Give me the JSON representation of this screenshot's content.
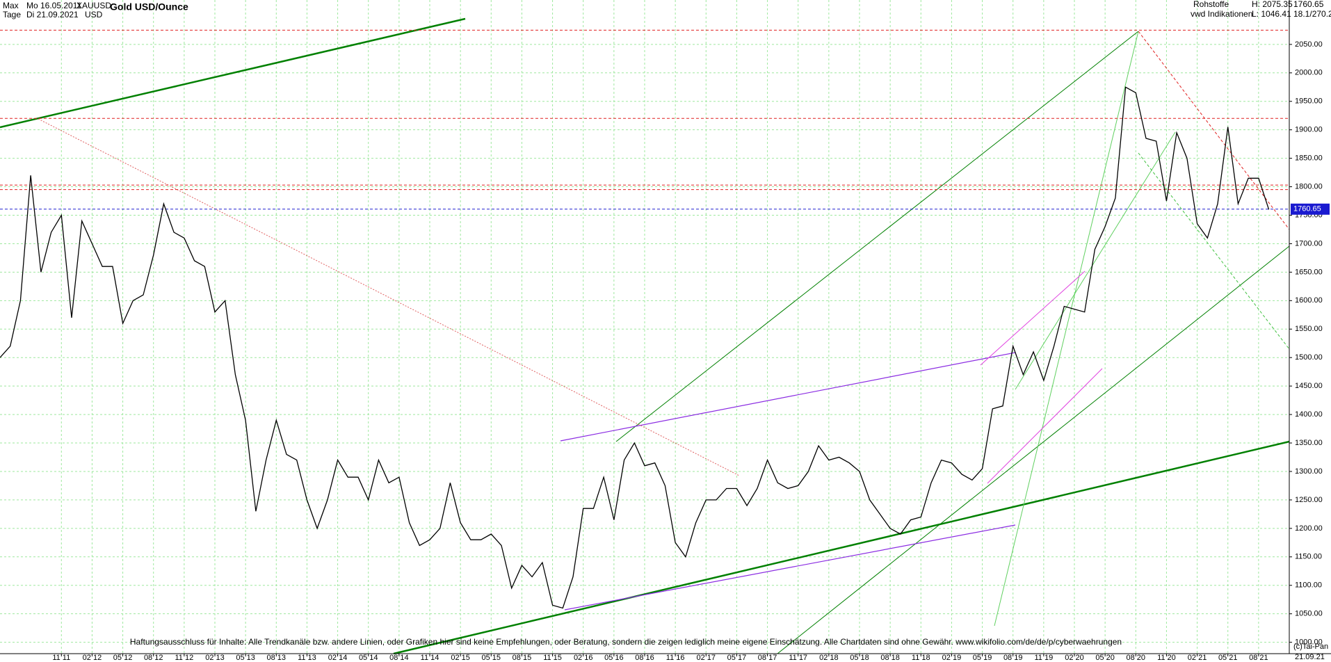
{
  "chart_data": {
    "type": "line",
    "header": {
      "range": "Max",
      "from": "Mo 16.05.2011",
      "symbol": "XAUUSD",
      "period": "Tage",
      "to": "Di 21.09.2021",
      "currency": "USD",
      "title": "Gold USD/Ounce",
      "group": "Rohstoffe",
      "source": "vwd Indikationen",
      "high": "H: 2075.35",
      "low": "L: 1046.41",
      "last": "1760.65",
      "scale": "18.1/270.2"
    },
    "footer": "Haftungsausschluss für Inhalte: Alle Trendkanäle bzw. andere Linien, oder Grafiken hier sind keine Empfehlungen, oder Beratung, sondern die zeigen lediglich meine eigene Einschätzung. Alle Chartdaten sind ohne Gewähr.  www.wikifolio.com/de/de/p/cyberwaehrungen",
    "copyright": "(c)Tai-Pan",
    "end_label": "21.09.21",
    "x": [
      "2011-05",
      "2011-06",
      "2011-07",
      "2011-08",
      "2011-09",
      "2011-10",
      "2011-11",
      "2011-12",
      "2012-01",
      "2012-02",
      "2012-03",
      "2012-04",
      "2012-05",
      "2012-06",
      "2012-07",
      "2012-08",
      "2012-09",
      "2012-10",
      "2012-11",
      "2012-12",
      "2013-01",
      "2013-02",
      "2013-03",
      "2013-04",
      "2013-05",
      "2013-06",
      "2013-07",
      "2013-08",
      "2013-09",
      "2013-10",
      "2013-11",
      "2013-12",
      "2014-01",
      "2014-02",
      "2014-03",
      "2014-04",
      "2014-05",
      "2014-06",
      "2014-07",
      "2014-08",
      "2014-09",
      "2014-10",
      "2014-11",
      "2014-12",
      "2015-01",
      "2015-02",
      "2015-03",
      "2015-04",
      "2015-05",
      "2015-06",
      "2015-07",
      "2015-08",
      "2015-09",
      "2015-10",
      "2015-11",
      "2015-12",
      "2016-01",
      "2016-02",
      "2016-03",
      "2016-04",
      "2016-05",
      "2016-06",
      "2016-07",
      "2016-08",
      "2016-09",
      "2016-10",
      "2016-11",
      "2016-12",
      "2017-01",
      "2017-02",
      "2017-03",
      "2017-04",
      "2017-05",
      "2017-06",
      "2017-07",
      "2017-08",
      "2017-09",
      "2017-10",
      "2017-11",
      "2017-12",
      "2018-01",
      "2018-02",
      "2018-03",
      "2018-04",
      "2018-05",
      "2018-06",
      "2018-07",
      "2018-08",
      "2018-09",
      "2018-10",
      "2018-11",
      "2018-12",
      "2019-01",
      "2019-02",
      "2019-03",
      "2019-04",
      "2019-05",
      "2019-06",
      "2019-07",
      "2019-08",
      "2019-09",
      "2019-10",
      "2019-11",
      "2019-12",
      "2020-01",
      "2020-02",
      "2020-03",
      "2020-04",
      "2020-05",
      "2020-06",
      "2020-07",
      "2020-08",
      "2020-09",
      "2020-10",
      "2020-11",
      "2020-12",
      "2021-01",
      "2021-02",
      "2021-03",
      "2021-04",
      "2021-05",
      "2021-06",
      "2021-07",
      "2021-08",
      "2021-09"
    ],
    "series": [
      {
        "name": "XAUUSD",
        "color": "#000000",
        "values": [
          1500,
          1520,
          1600,
          1820,
          1650,
          1720,
          1750,
          1570,
          1740,
          1700,
          1660,
          1660,
          1560,
          1600,
          1610,
          1680,
          1770,
          1720,
          1710,
          1670,
          1660,
          1580,
          1600,
          1470,
          1390,
          1230,
          1320,
          1390,
          1330,
          1320,
          1250,
          1200,
          1250,
          1320,
          1290,
          1290,
          1250,
          1320,
          1280,
          1290,
          1210,
          1170,
          1180,
          1200,
          1280,
          1210,
          1180,
          1180,
          1190,
          1170,
          1095,
          1135,
          1115,
          1140,
          1065,
          1060,
          1115,
          1235,
          1235,
          1290,
          1215,
          1320,
          1350,
          1310,
          1315,
          1275,
          1175,
          1150,
          1210,
          1250,
          1250,
          1270,
          1270,
          1240,
          1270,
          1320,
          1280,
          1270,
          1275,
          1300,
          1345,
          1320,
          1325,
          1315,
          1300,
          1250,
          1225,
          1200,
          1190,
          1215,
          1220,
          1280,
          1320,
          1315,
          1295,
          1285,
          1305,
          1410,
          1415,
          1520,
          1470,
          1510,
          1460,
          1520,
          1590,
          1585,
          1580,
          1690,
          1730,
          1780,
          1975,
          1965,
          1885,
          1880,
          1775,
          1895,
          1850,
          1735,
          1710,
          1770,
          1905,
          1770,
          1815,
          1815,
          1760
        ]
      }
    ],
    "hlines": [
      {
        "value": 2075,
        "color": "#e02020"
      },
      {
        "value": 1920,
        "color": "#e02020"
      },
      {
        "value": 1803,
        "color": "#e02020"
      },
      {
        "value": 1795,
        "color": "#e02020"
      },
      {
        "value": 1760.65,
        "color": "#2020d0"
      }
    ],
    "last_value": 1760.65,
    "xlim": [
      "2011-05",
      "2021-11"
    ],
    "xticks": [
      {
        "value": "2011-11",
        "label": "11 11"
      },
      {
        "value": "2012-02",
        "label": "02 12"
      },
      {
        "value": "2012-05",
        "label": "05 12"
      },
      {
        "value": "2012-08",
        "label": "08 12"
      },
      {
        "value": "2012-11",
        "label": "11 12"
      },
      {
        "value": "2013-02",
        "label": "02 13"
      },
      {
        "value": "2013-05",
        "label": "05 13"
      },
      {
        "value": "2013-08",
        "label": "08 13"
      },
      {
        "value": "2013-11",
        "label": "11 13"
      },
      {
        "value": "2014-02",
        "label": "02 14"
      },
      {
        "value": "2014-05",
        "label": "05 14"
      },
      {
        "value": "2014-08",
        "label": "08 14"
      },
      {
        "value": "2014-11",
        "label": "11 14"
      },
      {
        "value": "2015-02",
        "label": "02 15"
      },
      {
        "value": "2015-05",
        "label": "05 15"
      },
      {
        "value": "2015-08",
        "label": "08 15"
      },
      {
        "value": "2015-11",
        "label": "11 15"
      },
      {
        "value": "2016-02",
        "label": "02 16"
      },
      {
        "value": "2016-05",
        "label": "05 16"
      },
      {
        "value": "2016-08",
        "label": "08 16"
      },
      {
        "value": "2016-11",
        "label": "11 16"
      },
      {
        "value": "2017-02",
        "label": "02 17"
      },
      {
        "value": "2017-05",
        "label": "05 17"
      },
      {
        "value": "2017-08",
        "label": "08 17"
      },
      {
        "value": "2017-11",
        "label": "11 17"
      },
      {
        "value": "2018-02",
        "label": "02 18"
      },
      {
        "value": "2018-05",
        "label": "05 18"
      },
      {
        "value": "2018-08",
        "label": "08 18"
      },
      {
        "value": "2018-11",
        "label": "11 18"
      },
      {
        "value": "2019-02",
        "label": "02 19"
      },
      {
        "value": "2019-05",
        "label": "05 19"
      },
      {
        "value": "2019-08",
        "label": "08 19"
      },
      {
        "value": "2019-11",
        "label": "11 19"
      },
      {
        "value": "2020-02",
        "label": "02 20"
      },
      {
        "value": "2020-05",
        "label": "05 20"
      },
      {
        "value": "2020-08",
        "label": "08 20"
      },
      {
        "value": "2020-11",
        "label": "11 20"
      },
      {
        "value": "2021-02",
        "label": "02 21"
      },
      {
        "value": "2021-05",
        "label": "05 21"
      },
      {
        "value": "2021-08",
        "label": "08 21"
      }
    ],
    "ylim": [
      980,
      2095
    ],
    "yticks": [
      {
        "value": 1000,
        "label": "1000.00"
      },
      {
        "value": 1050,
        "label": "1050.00"
      },
      {
        "value": 1100,
        "label": "1100.00"
      },
      {
        "value": 1150,
        "label": "1150.00"
      },
      {
        "value": 1200,
        "label": "1200.00"
      },
      {
        "value": 1250,
        "label": "1250.00"
      },
      {
        "value": 1300,
        "label": "1300.00"
      },
      {
        "value": 1350,
        "label": "1350.00"
      },
      {
        "value": 1400,
        "label": "1400.00"
      },
      {
        "value": 1450,
        "label": "1450.00"
      },
      {
        "value": 1500,
        "label": "1500.00"
      },
      {
        "value": 1550,
        "label": "1550.00"
      },
      {
        "value": 1600,
        "label": "1600.00"
      },
      {
        "value": 1650,
        "label": "1650.00"
      },
      {
        "value": 1700,
        "label": "1700.00"
      },
      {
        "value": 1750,
        "label": "1750.00"
      },
      {
        "value": 1800,
        "label": "1800.00"
      },
      {
        "value": 1850,
        "label": "1850.00"
      },
      {
        "value": 1900,
        "label": "1900.00"
      },
      {
        "value": 1950,
        "label": "1950.00"
      },
      {
        "value": 2000,
        "label": "2000.00"
      },
      {
        "value": 2050,
        "label": "2050.00"
      }
    ],
    "grid": true
  }
}
